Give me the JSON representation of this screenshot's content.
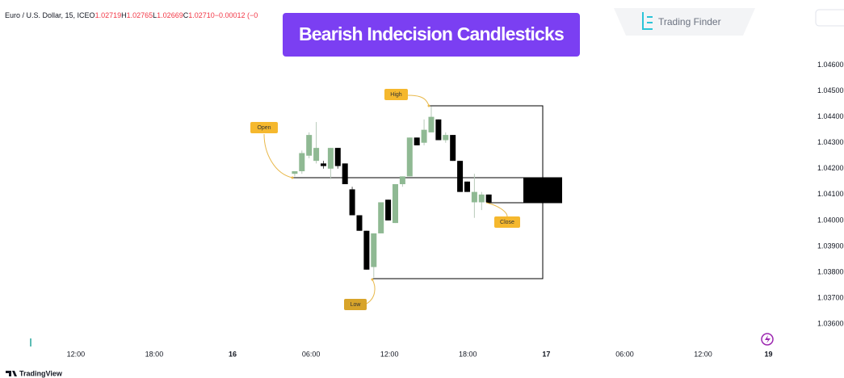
{
  "chart_data": {
    "type": "candlestick",
    "title": "Bearish Indecision Candlesticks",
    "symbol": "Euro / U.S. Dollar, 15, ICE",
    "ohlc_labels": [
      "O",
      "H",
      "L",
      "C"
    ],
    "ohlc_values": [
      "1.02719",
      "1.02765",
      "1.02669",
      "1.02710"
    ],
    "change": "−0.00012 (−0",
    "brand": "Trading Finder",
    "footer": "TradingView",
    "annotations": {
      "high": "High",
      "open": "Open",
      "low": "Low",
      "close": "Close"
    },
    "up_color": "#8fb993",
    "down_color": "#000000",
    "x": [
      16.75,
      17.3,
      17.85,
      18.4,
      18.95,
      19.5,
      20.05,
      20.6,
      21.15,
      21.7,
      22.25,
      22.8,
      23.35,
      23.9,
      24.45,
      25,
      25.55,
      26.1,
      26.65,
      27.2,
      27.75,
      28.3,
      28.85,
      29.4,
      29.95,
      30.5,
      31.05,
      31.6
    ],
    "open": [
      1.0418,
      1.0419,
      1.0425,
      1.0423,
      1.0422,
      1.042,
      1.0428,
      1.0422,
      1.0412,
      1.0402,
      1.0396,
      1.0382,
      1.0395,
      1.0408,
      1.0399,
      1.0414,
      1.0417,
      1.0432,
      1.043,
      1.0434,
      1.0439,
      1.0431,
      1.0433,
      1.0423,
      1.0415,
      1.0407,
      1.0407,
      1.041
    ],
    "high": [
      1.0419,
      1.0427,
      1.0434,
      1.0438,
      1.0423,
      1.0428,
      1.0428,
      1.0422,
      1.0413,
      1.0402,
      1.0396,
      1.0395,
      1.0407,
      1.0408,
      1.0414,
      1.0417,
      1.0432,
      1.0432,
      1.0439,
      1.0444,
      1.0439,
      1.0434,
      1.0433,
      1.0423,
      1.0415,
      1.0418,
      1.0411,
      1.041
    ],
    "low": [
      1.0417,
      1.0418,
      1.0424,
      1.0422,
      1.042,
      1.0416,
      1.042,
      1.0414,
      1.0402,
      1.0396,
      1.0381,
      1.0378,
      1.0395,
      1.04,
      1.0399,
      1.0413,
      1.0417,
      1.0429,
      1.0429,
      1.0434,
      1.0431,
      1.043,
      1.0423,
      1.0411,
      1.0411,
      1.0401,
      1.0404,
      1.0407
    ],
    "close": [
      1.0419,
      1.0426,
      1.0433,
      1.0428,
      1.0421,
      1.0428,
      1.0421,
      1.0414,
      1.0402,
      1.0396,
      1.0381,
      1.0395,
      1.0407,
      1.04,
      1.0414,
      1.0417,
      1.0432,
      1.0429,
      1.0435,
      1.044,
      1.0431,
      1.0433,
      1.0423,
      1.0411,
      1.0411,
      1.0411,
      1.041,
      1.0407
    ],
    "xlim": [
      -5.8,
      56
    ],
    "xticks": [
      {
        "value": 0,
        "label": "12:00"
      },
      {
        "value": 6,
        "label": "18:00"
      },
      {
        "value": 12,
        "label": "16"
      },
      {
        "value": 18,
        "label": "06:00"
      },
      {
        "value": 24,
        "label": "12:00"
      },
      {
        "value": 30,
        "label": "18:00"
      },
      {
        "value": 36,
        "label": "17"
      },
      {
        "value": 42,
        "label": "06:00"
      },
      {
        "value": 48,
        "label": "12:00"
      },
      {
        "value": 53,
        "label": "19"
      }
    ],
    "ylim": [
      1.0351,
      1.0482
    ],
    "yticks": [
      {
        "value": 1.046,
        "label": "1.04600"
      },
      {
        "value": 1.045,
        "label": "1.04500"
      },
      {
        "value": 1.044,
        "label": "1.04400"
      },
      {
        "value": 1.043,
        "label": "1.04300"
      },
      {
        "value": 1.042,
        "label": "1.04200"
      },
      {
        "value": 1.041,
        "label": "1.04100"
      },
      {
        "value": 1.04,
        "label": "1.04000"
      },
      {
        "value": 1.039,
        "label": "1.03900"
      },
      {
        "value": 1.038,
        "label": "1.03800"
      },
      {
        "value": 1.037,
        "label": "1.03700"
      },
      {
        "value": 1.036,
        "label": "1.03600"
      }
    ],
    "grid": false
  }
}
